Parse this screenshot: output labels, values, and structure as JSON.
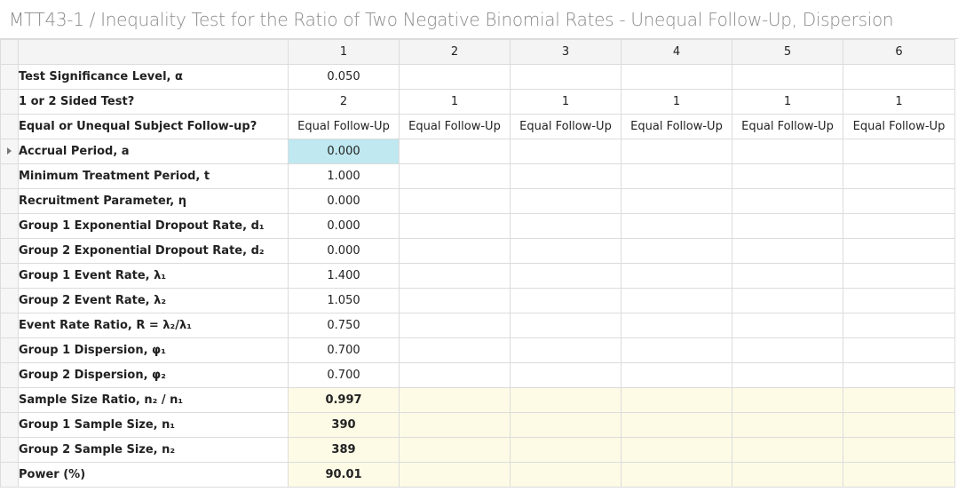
{
  "window": {
    "title": "MTT43-1 / Inequality Test for the Ratio of Two Negative Binomial Rates - Unequal Follow-Up, Dispersion"
  },
  "columns": [
    "1",
    "2",
    "3",
    "4",
    "5",
    "6"
  ],
  "rows": [
    {
      "label": "Test Significance Level, α",
      "values": [
        "0.050",
        "",
        "",
        "",
        "",
        ""
      ]
    },
    {
      "label": "1 or 2 Sided Test?",
      "values": [
        "2",
        "1",
        "1",
        "1",
        "1",
        "1"
      ]
    },
    {
      "label": "Equal or Unequal Subject Follow-up?",
      "values": [
        "Equal Follow-Up",
        "Equal Follow-Up",
        "Equal Follow-Up",
        "Equal Follow-Up",
        "Equal Follow-Up",
        "Equal Follow-Up"
      ]
    },
    {
      "label": "Accrual Period, a",
      "values": [
        "0.000",
        "",
        "",
        "",
        "",
        ""
      ]
    },
    {
      "label": "Minimum Treatment Period, t",
      "values": [
        "1.000",
        "",
        "",
        "",
        "",
        ""
      ]
    },
    {
      "label": "Recruitment Parameter, η",
      "values": [
        "0.000",
        "",
        "",
        "",
        "",
        ""
      ]
    },
    {
      "label": "Group 1 Exponential Dropout Rate, d₁",
      "values": [
        "0.000",
        "",
        "",
        "",
        "",
        ""
      ]
    },
    {
      "label": "Group 2 Exponential Dropout Rate, d₂",
      "values": [
        "0.000",
        "",
        "",
        "",
        "",
        ""
      ]
    },
    {
      "label": "Group 1 Event Rate, λ₁",
      "values": [
        "1.400",
        "",
        "",
        "",
        "",
        ""
      ]
    },
    {
      "label": "Group 2 Event Rate, λ₂",
      "values": [
        "1.050",
        "",
        "",
        "",
        "",
        ""
      ]
    },
    {
      "label": "Event Rate Ratio, R = λ₂/λ₁",
      "values": [
        "0.750",
        "",
        "",
        "",
        "",
        ""
      ]
    },
    {
      "label": "Group 1 Dispersion, φ₁",
      "values": [
        "0.700",
        "",
        "",
        "",
        "",
        ""
      ]
    },
    {
      "label": "Group 2 Dispersion, φ₂",
      "values": [
        "0.700",
        "",
        "",
        "",
        "",
        ""
      ]
    },
    {
      "label": "Sample Size Ratio, n₂ / n₁",
      "values": [
        "0.997",
        "",
        "",
        "",
        "",
        ""
      ]
    },
    {
      "label": "Group 1 Sample Size, n₁",
      "values": [
        "390",
        "",
        "",
        "",
        "",
        ""
      ]
    },
    {
      "label": "Group 2 Sample Size, n₂",
      "values": [
        "389",
        "",
        "",
        "",
        "",
        ""
      ]
    },
    {
      "label": "Power (%)",
      "values": [
        "90.01",
        "",
        "",
        "",
        "",
        ""
      ]
    }
  ],
  "colors": {
    "selected_cell": "#bfe8f0",
    "output_row": "#fdfbe6",
    "title_text": "#8a8a8a"
  }
}
